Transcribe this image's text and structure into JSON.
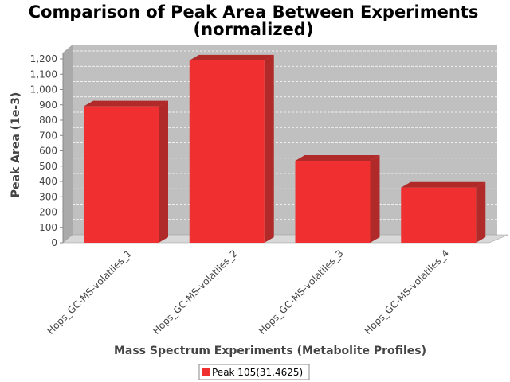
{
  "chart_data": {
    "type": "bar",
    "title_line1": "Comparison of Peak Area Between Experiments",
    "title_line2": "(normalized)",
    "xlabel": "Mass Spectrum Experiments (Metabolite Profiles)",
    "ylabel": "Peak Area (1e-3)",
    "categories": [
      "Hops_GC-MS-volatiles_1",
      "Hops_GC-MS-volatiles_2",
      "Hops_GC-MS-volatiles_3",
      "Hops_GC-MS-volatiles_4"
    ],
    "series": [
      {
        "name": "Peak 105(31.4625)",
        "values": [
          890,
          1190,
          535,
          360
        ],
        "color": "#f03030"
      }
    ],
    "ylim": [
      0,
      1200
    ],
    "yticks": [
      "0",
      "100",
      "200",
      "300",
      "400",
      "500",
      "600",
      "700",
      "800",
      "900",
      "1,000",
      "1,100",
      "1,200"
    ],
    "grid": true,
    "legend_position": "bottom"
  }
}
